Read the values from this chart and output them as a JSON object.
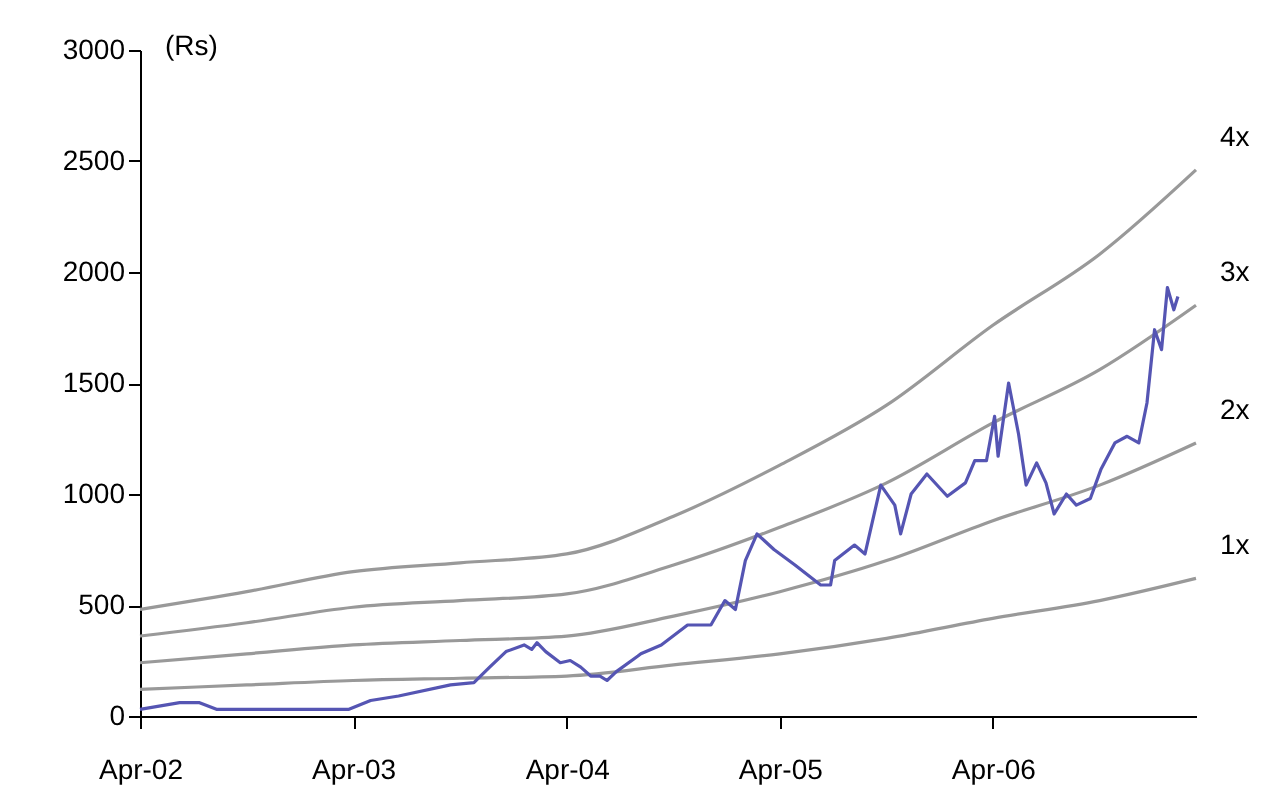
{
  "chart_data": {
    "type": "line",
    "ylabel": "(Rs)",
    "xlim": [
      "2002-04-01",
      "2007-03-15"
    ],
    "xticks": [
      {
        "value": "2002-04-01",
        "label": "Apr-02"
      },
      {
        "value": "2003-04-01",
        "label": "Apr-03"
      },
      {
        "value": "2004-04-01",
        "label": "Apr-04"
      },
      {
        "value": "2005-04-01",
        "label": "Apr-05"
      },
      {
        "value": "2006-04-01",
        "label": "Apr-06"
      }
    ],
    "ylim": [
      0,
      3000
    ],
    "yticks": [
      0,
      500,
      1000,
      1500,
      2000,
      2500,
      3000
    ],
    "grid": false,
    "line_style": "solid",
    "marker": "none",
    "series": [
      {
        "name": "4x",
        "color": "#999999",
        "x": [
          "2002-04-01",
          "2002-10-01",
          "2003-04-01",
          "2003-10-01",
          "2004-04-01",
          "2004-10-01",
          "2005-04-01",
          "2005-10-01",
          "2006-04-01",
          "2006-10-01",
          "2007-03-15"
        ],
        "values": [
          480,
          560,
          650,
          690,
          730,
          900,
          1130,
          1400,
          1760,
          2080,
          2460
        ]
      },
      {
        "name": "3x",
        "color": "#999999",
        "x": [
          "2002-04-01",
          "2002-10-01",
          "2003-04-01",
          "2003-10-01",
          "2004-04-01",
          "2004-10-01",
          "2005-04-01",
          "2005-10-01",
          "2006-04-01",
          "2006-10-01",
          "2007-03-15"
        ],
        "values": [
          360,
          420,
          490,
          520,
          550,
          680,
          850,
          1050,
          1320,
          1560,
          1850
        ]
      },
      {
        "name": "2x",
        "color": "#999999",
        "x": [
          "2002-04-01",
          "2002-10-01",
          "2003-04-01",
          "2003-10-01",
          "2004-04-01",
          "2004-10-01",
          "2005-04-01",
          "2005-10-01",
          "2006-04-01",
          "2006-10-01",
          "2007-03-15"
        ],
        "values": [
          240,
          280,
          320,
          340,
          360,
          450,
          560,
          700,
          880,
          1040,
          1230
        ]
      },
      {
        "name": "1x",
        "color": "#999999",
        "x": [
          "2002-04-01",
          "2002-10-01",
          "2003-04-01",
          "2003-10-01",
          "2004-04-01",
          "2004-10-01",
          "2005-04-01",
          "2005-10-01",
          "2006-04-01",
          "2006-10-01",
          "2007-03-15"
        ],
        "values": [
          120,
          140,
          160,
          170,
          180,
          230,
          280,
          350,
          440,
          520,
          620
        ]
      },
      {
        "color": "#5555b3",
        "x": [
          "2002-04-01",
          "2002-06-08",
          "2002-07-12",
          "2002-08-10",
          "2003-03-25",
          "2003-05-01",
          "2003-06-18",
          "2003-09-15",
          "2003-10-25",
          "2003-11-21",
          "2003-12-19",
          "2004-01-19",
          "2004-02-01",
          "2004-02-10",
          "2004-02-25",
          "2004-03-21",
          "2004-04-07",
          "2004-04-25",
          "2004-05-12",
          "2004-05-28",
          "2004-06-09",
          "2004-06-25",
          "2004-08-01",
          "2004-08-06",
          "2004-09-10",
          "2004-10-25",
          "2004-12-04",
          "2004-12-28",
          "2005-01-15",
          "2005-02-01",
          "2005-02-21",
          "2005-03-22",
          "2005-04-27",
          "2005-06-10",
          "2005-06-27",
          "2005-07-04",
          "2005-08-07",
          "2005-08-25",
          "2005-09-21",
          "2005-10-15",
          "2005-10-25",
          "2005-11-12",
          "2005-12-09",
          "2006-01-13",
          "2006-02-13",
          "2006-03-01",
          "2006-03-21",
          "2006-04-04",
          "2006-04-10",
          "2006-04-28",
          "2006-05-15",
          "2006-05-28",
          "2006-06-15",
          "2006-07-01",
          "2006-07-15",
          "2006-08-05",
          "2006-08-22",
          "2006-09-15",
          "2006-10-03",
          "2006-10-27",
          "2006-11-17",
          "2006-12-07",
          "2006-12-21",
          "2007-01-03",
          "2007-01-15",
          "2007-01-25",
          "2007-02-05",
          "2007-02-12"
        ],
        "values": [
          30,
          60,
          60,
          30,
          30,
          70,
          90,
          140,
          150,
          220,
          290,
          320,
          300,
          330,
          290,
          240,
          250,
          220,
          180,
          180,
          160,
          200,
          270,
          280,
          320,
          410,
          410,
          520,
          480,
          700,
          820,
          750,
          680,
          590,
          590,
          700,
          770,
          730,
          1040,
          950,
          820,
          1000,
          1090,
          990,
          1050,
          1150,
          1150,
          1350,
          1170,
          1500,
          1270,
          1040,
          1140,
          1050,
          910,
          1000,
          950,
          980,
          1110,
          1230,
          1260,
          1230,
          1410,
          1740,
          1650,
          1930,
          1830,
          1890
        ]
      }
    ]
  }
}
